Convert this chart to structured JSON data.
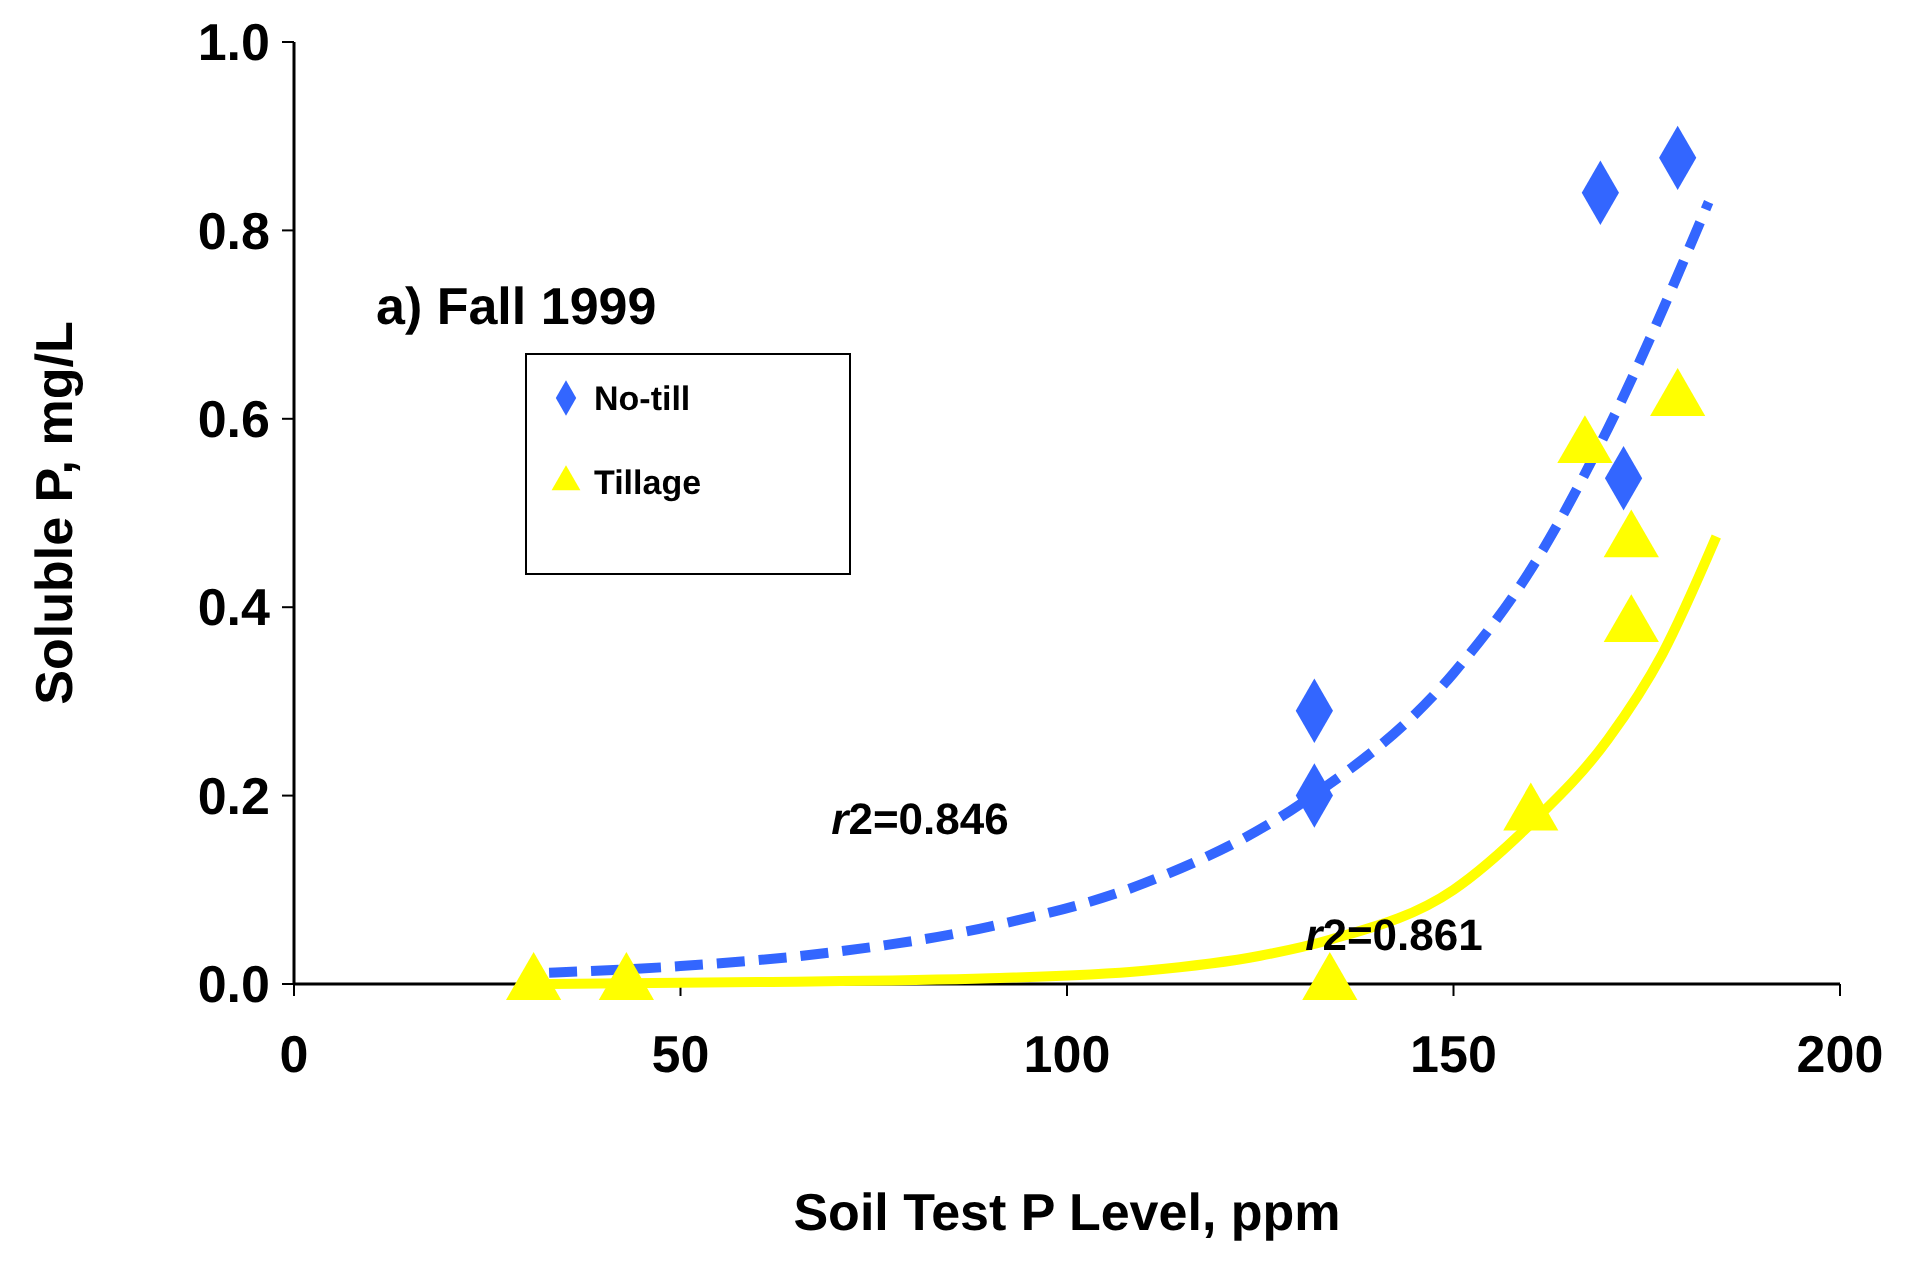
{
  "chart_data": {
    "type": "scatter",
    "xlabel": "Soil Test P Level, ppm",
    "ylabel": "Soluble P, mg/L",
    "xlim": [
      0,
      200
    ],
    "xticks": [
      0,
      50,
      100,
      150,
      200
    ],
    "ylim": [
      0,
      1
    ],
    "yticks": [
      {
        "value": 0,
        "label": "0.0"
      },
      {
        "value": 0.2,
        "label": "0.2"
      },
      {
        "value": 0.4,
        "label": "0.4"
      },
      {
        "value": 0.6,
        "label": "0.6"
      },
      {
        "value": 0.8,
        "label": "0.8"
      },
      {
        "value": 1,
        "label": "1.0"
      }
    ],
    "grid": false,
    "legend": "top left",
    "annotations": [
      "a) Fall 1999",
      "r2=0.846",
      "r2=0.861"
    ],
    "series": [
      {
        "type": "line",
        "color": "#3366ff",
        "line_style": "dashed",
        "x": [
          33,
          50,
          70,
          90,
          110,
          130,
          150,
          160,
          170,
          183
        ],
        "values": [
          0.012,
          0.019,
          0.034,
          0.061,
          0.107,
          0.19,
          0.33,
          0.44,
          0.59,
          0.83
        ]
      },
      {
        "type": "line",
        "color": "#ffff00",
        "line_style": "solid",
        "x": [
          33,
          60,
          90,
          110,
          125,
          134,
          150,
          160,
          170,
          177,
          184
        ],
        "values": [
          0,
          0.002,
          0.006,
          0.014,
          0.03,
          0.047,
          0.1,
          0.17,
          0.26,
          0.35,
          0.475
        ]
      },
      {
        "name": "No-till",
        "color": "#3366ff",
        "marker": "diamond",
        "x": [
          132,
          132,
          169,
          179,
          172
        ],
        "values": [
          0.29,
          0.2,
          0.84,
          0.877,
          0.537
        ]
      },
      {
        "name": "Tillage",
        "color": "#ffff00",
        "marker": "triangle",
        "x": [
          31,
          43,
          134,
          160,
          167,
          173,
          173,
          179
        ],
        "values": [
          0,
          0,
          0,
          0.18,
          0.57,
          0.47,
          0.38,
          0.62
        ]
      }
    ]
  }
}
